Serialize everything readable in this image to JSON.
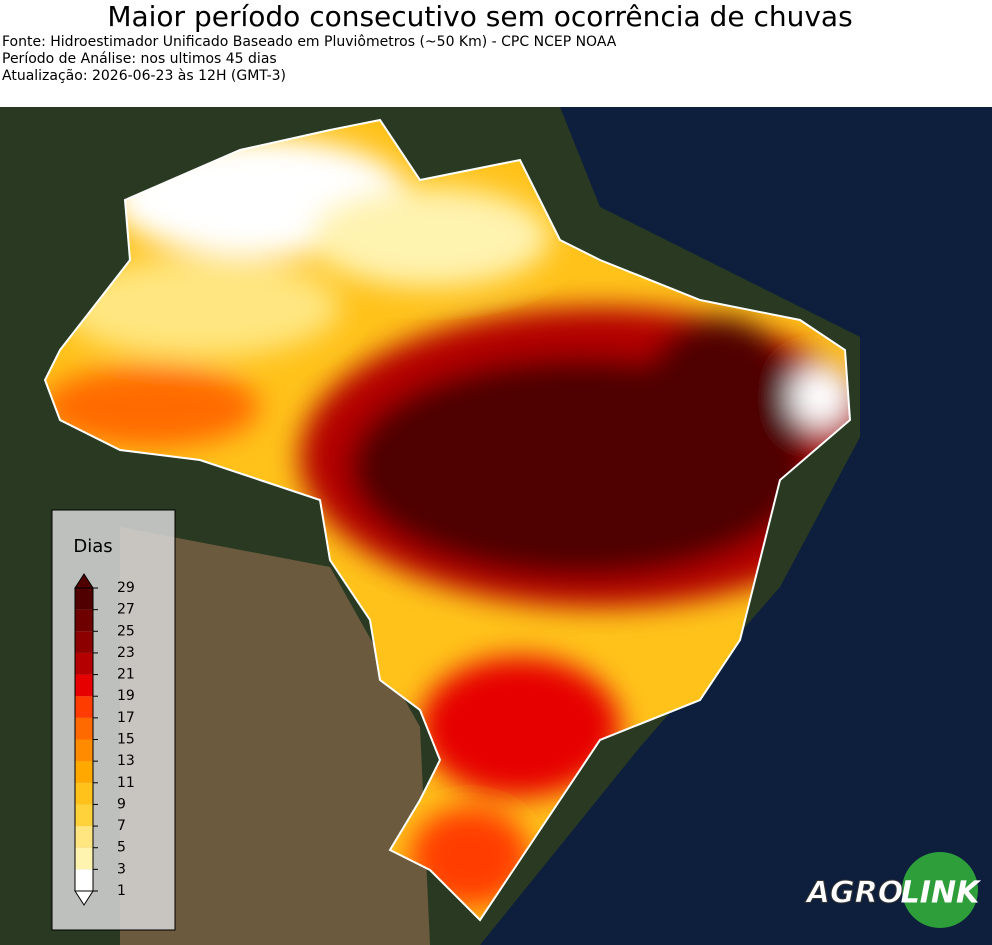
{
  "header": {
    "title": "Maior período consecutivo sem ocorrência de chuvas",
    "lines": [
      "Fonte: Hidroestimador Unificado Baseado em Pluviômetros (~50 Km) - CPC NCEP NOAA",
      "Período de Análise: nos ultimos 45 dias",
      "Atualização: 2026-06-23 às 12H (GMT-3)"
    ]
  },
  "legend": {
    "title": "Dias",
    "ticks": [
      1,
      3,
      5,
      7,
      9,
      11,
      13,
      15,
      17,
      19,
      21,
      23,
      25,
      27,
      29
    ],
    "colors": [
      "#ffffff",
      "#fff3b0",
      "#ffe680",
      "#ffd23c",
      "#ffc21a",
      "#ffa800",
      "#ff8c00",
      "#ff6a00",
      "#ff3c00",
      "#e60000",
      "#b40000",
      "#8c0000",
      "#6e0000",
      "#500000"
    ]
  },
  "logo": {
    "left": "AGRO",
    "right": "LINK"
  }
}
